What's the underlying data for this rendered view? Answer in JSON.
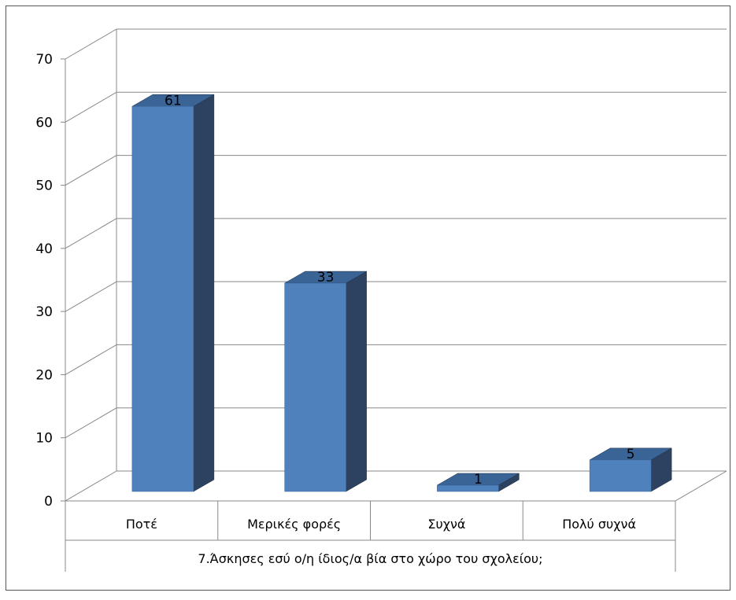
{
  "chart_data": {
    "type": "bar",
    "style": "3d-column",
    "categories": [
      "Ποτέ",
      "Μερικές φορές",
      "Συχνά",
      "Πολύ συχνά"
    ],
    "values": [
      61,
      33,
      1,
      5
    ],
    "data_labels": [
      "61",
      "33",
      "1",
      "5"
    ],
    "title": "",
    "xlabel": "7.Άσκησες εσύ ο/η ίδιος/α βία στο χώρο του σχολείου;",
    "ylabel": "",
    "ylim": [
      0,
      70
    ],
    "yticks": [
      0,
      10,
      20,
      30,
      40,
      50,
      60,
      70
    ],
    "ytick_labels": [
      "0",
      "10",
      "20",
      "30",
      "40",
      "50",
      "60",
      "70"
    ],
    "grid": true,
    "legend": "none",
    "colors": {
      "bar_front": "#4F81BD",
      "bar_side": "#2C4260",
      "bar_top": "#3A6496",
      "gridline": "#888888",
      "frame": "#555555",
      "background": "#ffffff"
    }
  }
}
